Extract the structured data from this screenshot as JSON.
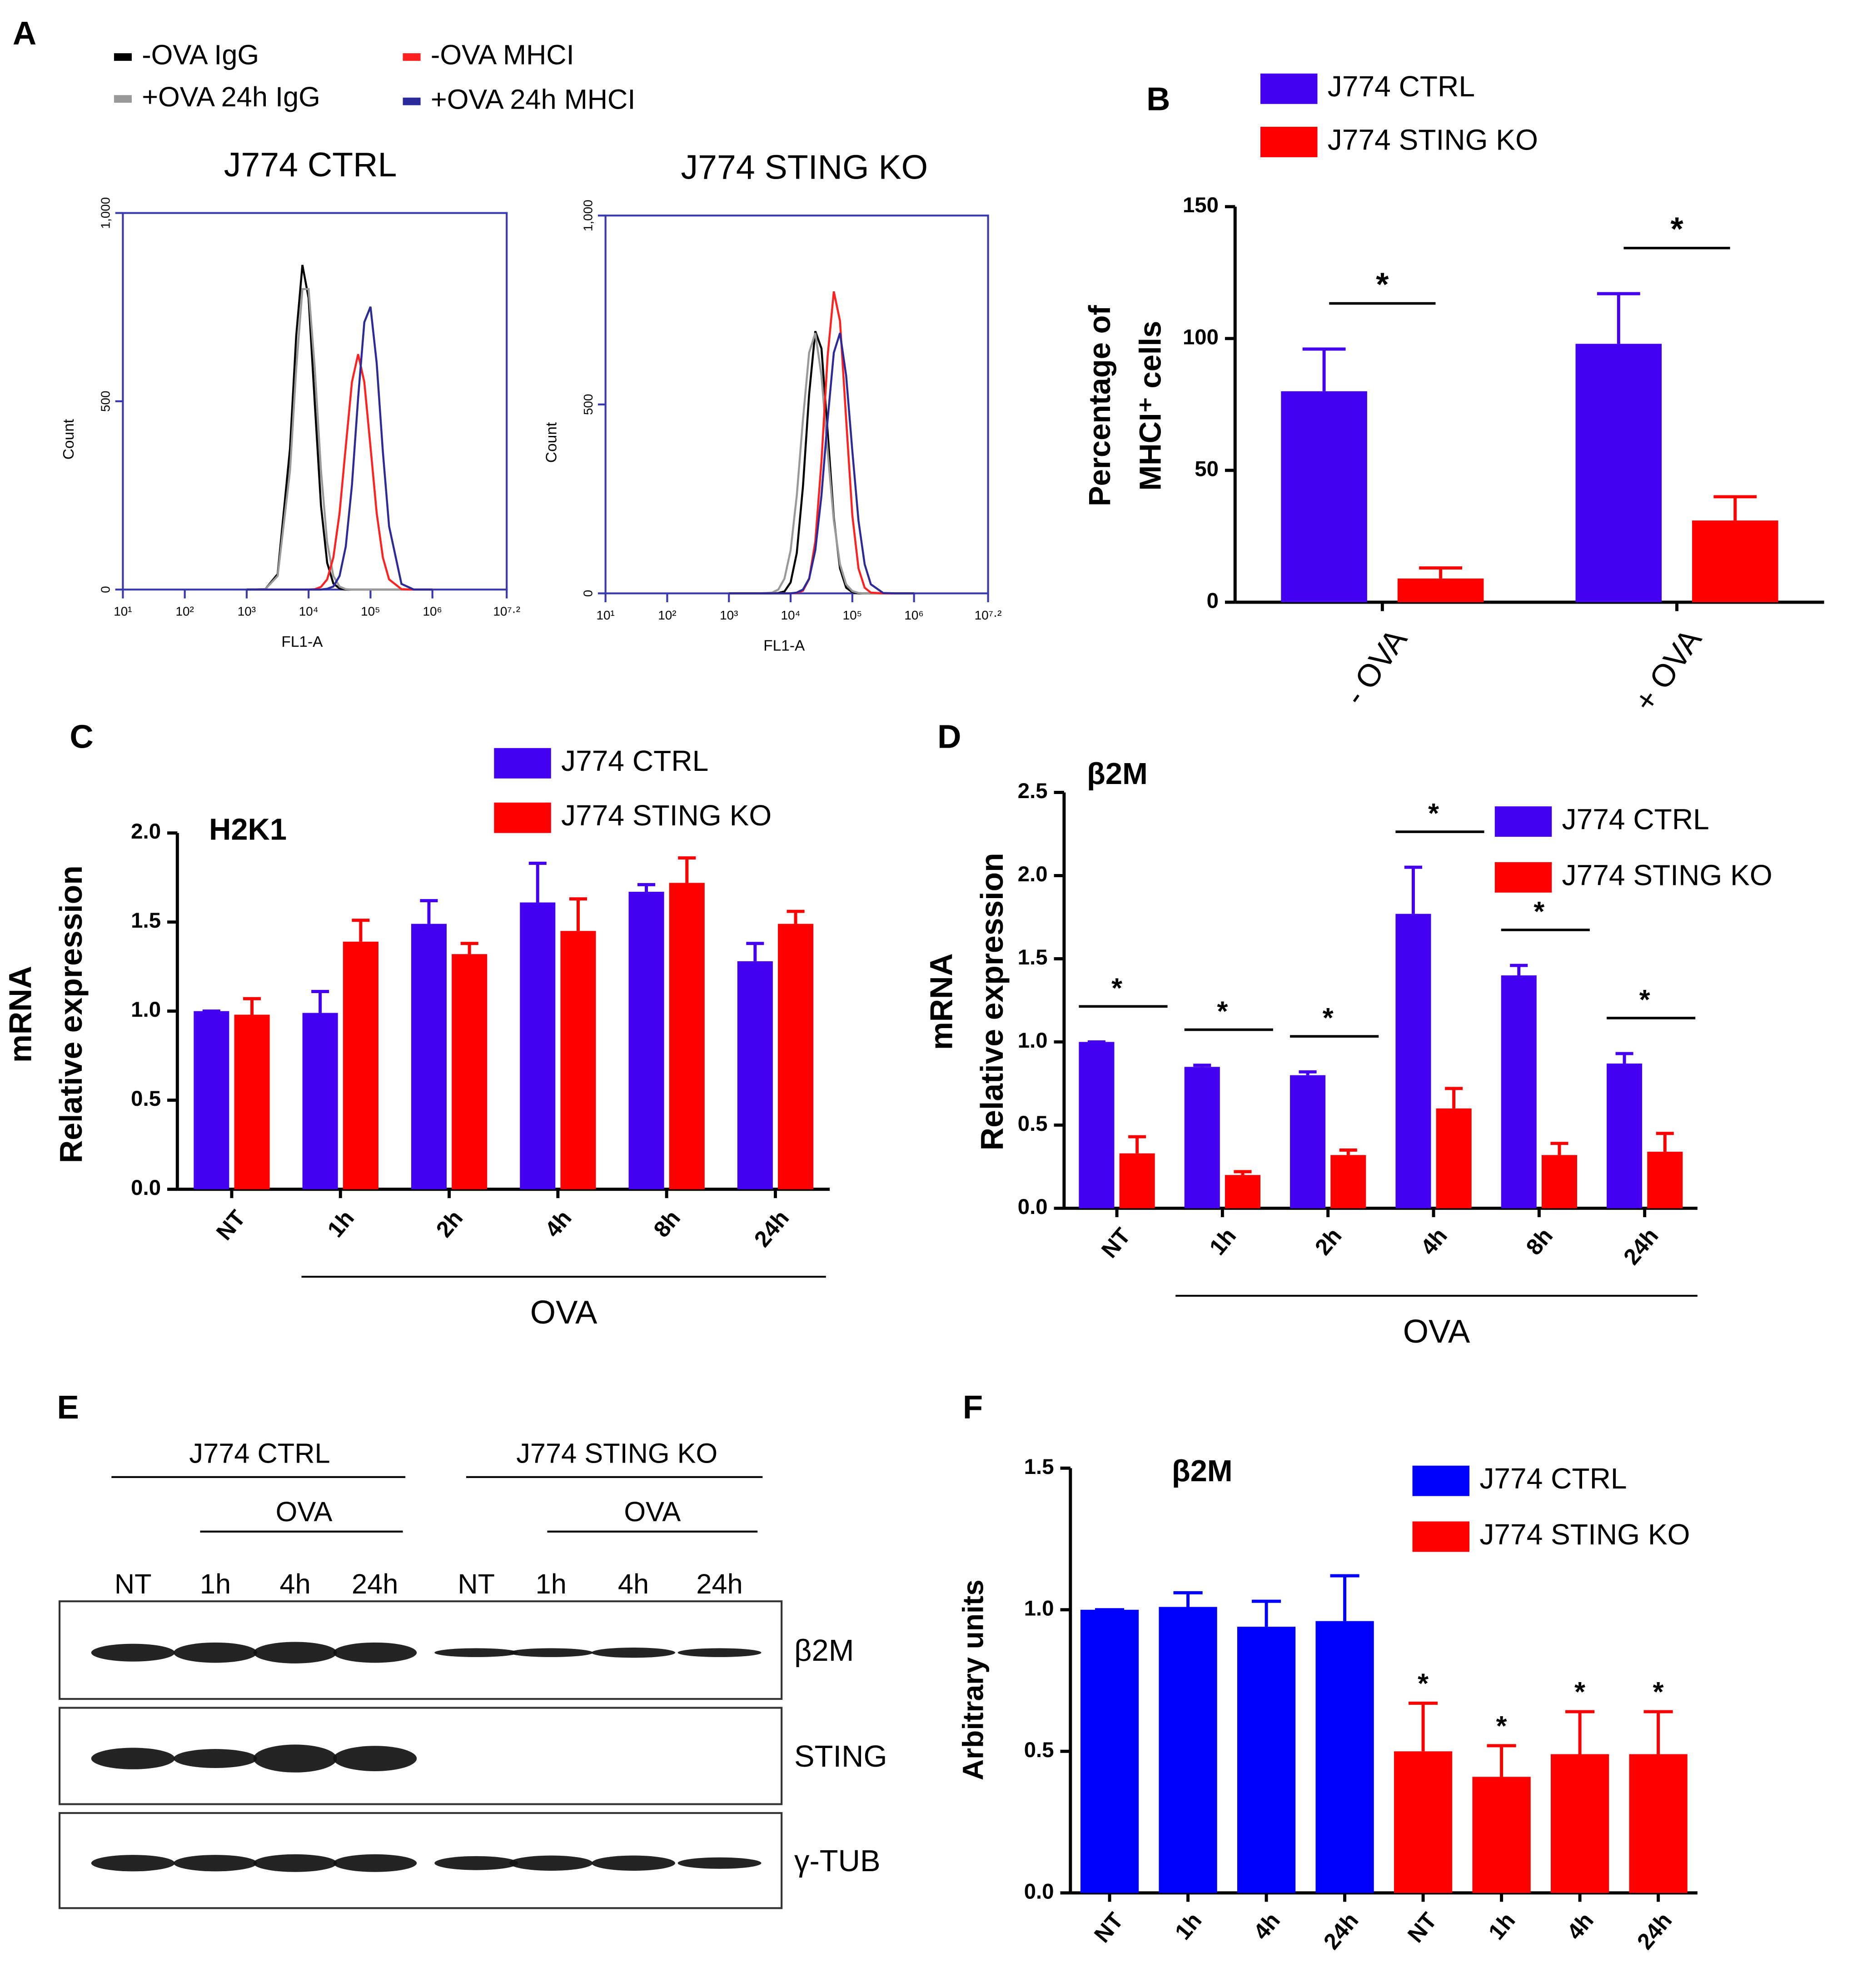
{
  "panel_labels": [
    "A",
    "B",
    "C",
    "D",
    "E",
    "F"
  ],
  "chart_data": [
    {
      "type": "line",
      "series": [
        {
          "name": "-OVA IgG",
          "color": "#000000"
        },
        {
          "name": "+OVA 24h IgG",
          "color": "#999999"
        },
        {
          "name": "-OVA MHCI",
          "color": "#ff2020"
        },
        {
          "name": "+OVA 24h MHCI",
          "color": "#2a2a9a"
        }
      ],
      "x": [
        3.0,
        3.3,
        3.5,
        3.7,
        3.8,
        3.9,
        4.0,
        4.1,
        4.2,
        4.3,
        4.4,
        4.5,
        4.6,
        4.7,
        4.8,
        4.9,
        5.0,
        5.1,
        5.2,
        5.3,
        5.5,
        5.7,
        6.0
      ],
      "x_label": "FL1-A",
      "y_label": "Count",
      "xlim": [
        1,
        7.2
      ],
      "xticks": [
        {
          "value": 1,
          "label": "10¹"
        },
        {
          "value": 2,
          "label": "10²"
        },
        {
          "value": 3,
          "label": "10³"
        },
        {
          "value": 4,
          "label": "10⁴"
        },
        {
          "value": 5,
          "label": "10⁵"
        },
        {
          "value": 6,
          "label": "10⁶"
        },
        {
          "value": 7.2,
          "label": "10⁷·²"
        }
      ],
      "ylim": [
        0,
        1000
      ],
      "yticks": [
        0,
        500,
        {
          "value": 1000,
          "label": "1,000"
        }
      ],
      "panels": [
        {
          "title": "J774 CTRL",
          "values": [
            [
              0,
              1,
              41,
              375,
              674,
              862,
              774,
              494,
              223,
              71,
              16,
              3,
              0,
              0,
              0,
              0,
              0,
              0,
              0,
              0,
              0,
              0,
              0
            ],
            [
              0,
              1,
              36,
              316,
              587,
              798,
              798,
              587,
              316,
              125,
              36,
              8,
              1,
              0,
              0,
              0,
              0,
              0,
              0,
              0,
              0,
              0,
              0
            ],
            [
              0,
              0,
              0,
              0,
              0,
              0,
              0,
              1,
              7,
              27,
              85,
              203,
              379,
              551,
              625,
              551,
              379,
              203,
              85,
              27,
              1,
              0,
              0
            ],
            [
              0,
              0,
              0,
              0,
              0,
              0,
              0,
              0,
              0,
              2,
              8,
              36,
              114,
              277,
              509,
              710,
              751,
              601,
              365,
              168,
              15,
              0,
              0
            ]
          ]
        },
        {
          "title": "J774 STING KO",
          "values": [
            [
              0,
              0,
              0,
              0,
              1,
              5,
              29,
              107,
              283,
              527,
              694,
              648,
              428,
              200,
              66,
              15,
              3,
              0,
              0,
              0,
              0,
              0,
              0
            ],
            [
              0,
              0,
              0,
              2,
              10,
              39,
              114,
              259,
              460,
              637,
              689,
              576,
              377,
              192,
              77,
              24,
              6,
              1,
              0,
              0,
              0,
              0,
              0
            ],
            [
              0,
              0,
              0,
              0,
              0,
              0,
              0,
              1,
              7,
              38,
              137,
              349,
              628,
              799,
              721,
              460,
              207,
              66,
              15,
              2,
              0,
              0,
              0
            ],
            [
              0,
              0,
              0,
              0,
              0,
              0,
              0,
              2,
              10,
              39,
              114,
              259,
              460,
              637,
              689,
              576,
              377,
              192,
              77,
              24,
              1,
              0,
              0
            ]
          ]
        }
      ]
    },
    {
      "type": "bar",
      "categories": [
        "- OVA",
        "+ OVA"
      ],
      "series": [
        {
          "name": "J774 CTRL",
          "color": "#4400f0",
          "values": [
            80,
            98
          ],
          "errors": [
            16,
            19
          ]
        },
        {
          "name": "J774 STING KO",
          "color": "#ff0000",
          "values": [
            9,
            31
          ],
          "errors": [
            4,
            9
          ]
        }
      ],
      "y_label": [
        "Percentage of",
        "MHCI⁺ cells"
      ],
      "ylim": [
        0,
        150
      ],
      "yticks": [
        0,
        50,
        100,
        150
      ],
      "significance": [
        "*",
        "*"
      ]
    },
    {
      "type": "bar",
      "title": "H2K1",
      "categories": [
        "NT",
        "1h",
        "2h",
        "4h",
        "8h",
        "24h"
      ],
      "series": [
        {
          "name": "J774 CTRL",
          "color": "#4400f0",
          "values": [
            1.0,
            0.99,
            1.49,
            1.61,
            1.67,
            1.28
          ],
          "errors": [
            0,
            0.12,
            0.13,
            0.22,
            0.04,
            0.1
          ]
        },
        {
          "name": "J774 STING KO",
          "color": "#ff0000",
          "values": [
            0.98,
            1.39,
            1.32,
            1.45,
            1.72,
            1.49
          ],
          "errors": [
            0.09,
            0.12,
            0.06,
            0.18,
            0.14,
            0.07
          ]
        }
      ],
      "y_label": [
        "mRNA",
        "Relative expression"
      ],
      "group_label": "OVA",
      "ylim": [
        0,
        2
      ],
      "yticks": [
        {
          "value": 0,
          "label": "0.0"
        },
        {
          "value": 0.5,
          "label": "0.5"
        },
        {
          "value": 1,
          "label": "1.0"
        },
        {
          "value": 1.5,
          "label": "1.5"
        },
        {
          "value": 2,
          "label": "2.0"
        }
      ]
    },
    {
      "type": "bar",
      "title": "β2M",
      "categories": [
        "NT",
        "1h",
        "2h",
        "4h",
        "8h",
        "24h"
      ],
      "series": [
        {
          "name": "J774 CTRL",
          "color": "#4400f0",
          "values": [
            1.0,
            0.85,
            0.8,
            1.77,
            1.4,
            0.87
          ],
          "errors": [
            0,
            0.01,
            0.02,
            0.28,
            0.06,
            0.06
          ]
        },
        {
          "name": "J774 STING KO",
          "color": "#ff0000",
          "values": [
            0.33,
            0.2,
            0.32,
            0.6,
            0.32,
            0.34
          ],
          "errors": [
            0.1,
            0.02,
            0.03,
            0.12,
            0.07,
            0.11
          ]
        }
      ],
      "y_label": [
        "mRNA",
        "Relative expression"
      ],
      "group_label": "OVA",
      "ylim": [
        0,
        2.5
      ],
      "yticks": [
        {
          "value": 0,
          "label": "0.0"
        },
        {
          "value": 0.5,
          "label": "0.5"
        },
        {
          "value": 1,
          "label": "1.0"
        },
        {
          "value": 1.5,
          "label": "1.5"
        },
        {
          "value": 2,
          "label": "2.0"
        },
        {
          "value": 2.5,
          "label": "2.5"
        }
      ],
      "significance": [
        "*",
        "*",
        "*",
        "*",
        "*",
        "*"
      ]
    },
    {
      "type": "bar",
      "title": "β2M",
      "categories": [
        "NT",
        "1h",
        "4h",
        "24h",
        "NT",
        "1h",
        "4h",
        "24h"
      ],
      "series": [
        {
          "name": "J774 CTRL",
          "color": "#0000ff",
          "values": [
            1.0,
            1.01,
            0.94,
            0.96,
            null,
            null,
            null,
            null
          ],
          "errors": [
            0,
            0.05,
            0.09,
            0.16,
            null,
            null,
            null,
            null
          ]
        },
        {
          "name": "J774 STING KO",
          "color": "#ff0000",
          "values": [
            null,
            null,
            null,
            null,
            0.5,
            0.41,
            0.49,
            0.49
          ],
          "errors": [
            null,
            null,
            null,
            null,
            0.17,
            0.11,
            0.15,
            0.15
          ]
        }
      ],
      "y_label": [
        "Arbitrary units"
      ],
      "ylim": [
        0,
        1.5
      ],
      "yticks": [
        {
          "value": 0,
          "label": "0.0"
        },
        {
          "value": 0.5,
          "label": "0.5"
        },
        {
          "value": 1,
          "label": "1.0"
        },
        {
          "value": 1.5,
          "label": "1.5"
        }
      ],
      "significance": [
        null,
        null,
        null,
        null,
        "*",
        "*",
        "*",
        "*"
      ]
    }
  ],
  "blot": {
    "groups": [
      {
        "name": "J774 CTRL",
        "treatment": "OVA"
      },
      {
        "name": "J774 STING KO",
        "treatment": "OVA"
      }
    ],
    "lanes": [
      "NT",
      "1h",
      "4h",
      "24h",
      "NT",
      "1h",
      "4h",
      "24h"
    ],
    "rows": [
      "β2M",
      "STING",
      "γ-TUB"
    ]
  }
}
